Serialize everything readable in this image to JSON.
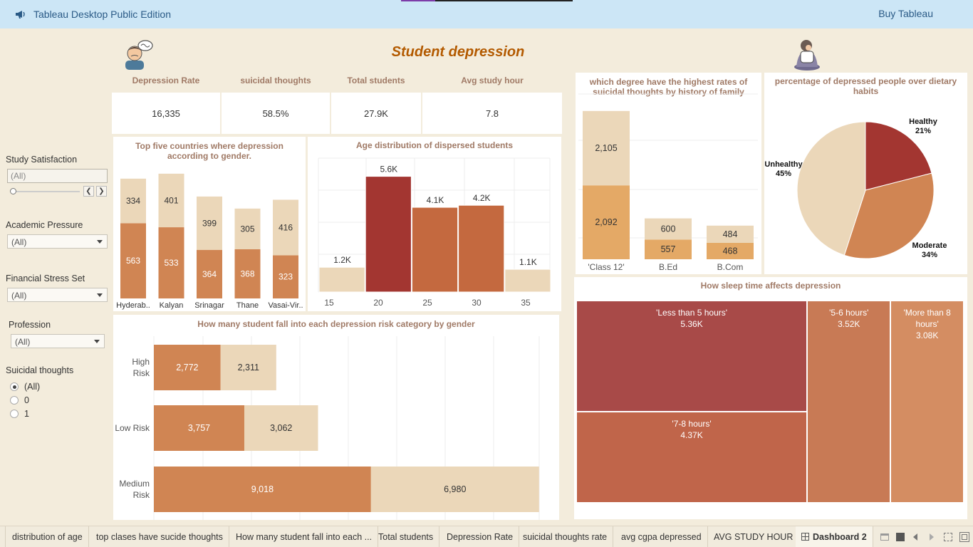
{
  "topbar": {
    "app_title": "Tableau Desktop Public Edition",
    "buy_label": "Buy Tableau",
    "icon": "megaphone-icon"
  },
  "dashboard": {
    "title": "Student depression"
  },
  "kpis": [
    {
      "label": "Depression Rate",
      "value": "16,335"
    },
    {
      "label": "suicidal thoughts",
      "value": "58.5%"
    },
    {
      "label": "Total students",
      "value": "27.9K"
    },
    {
      "label": "Avg study hour",
      "value": "7.8"
    }
  ],
  "filters": {
    "study_satisfaction": {
      "label": "Study Satisfaction",
      "value": "(All)"
    },
    "academic_pressure": {
      "label": "Academic Pressure",
      "value": "(All)"
    },
    "financial_stress": {
      "label": "Financial Stress Set",
      "value": "(All)"
    },
    "profession": {
      "label": "Profession",
      "value": "(All)"
    },
    "suicidal_thoughts": {
      "label": "Suicidal thoughts",
      "options": [
        "(All)",
        "0",
        "1"
      ],
      "selected": "(All)"
    }
  },
  "panels": {
    "countries_title": "Top five countries where depression according to gender.",
    "age_title": "Age distribution of dispersed students",
    "risk_title": "How many student fall into each depression risk category by gender",
    "degree_title": "which degree have the highest rates of suicidal thoughts by history of family",
    "diet_title": "percentage of depressed people over dietary habits",
    "sleep_title": "How  sleep time affects depression"
  },
  "colors": {
    "dark": "#a33631",
    "medium": "#c4693f",
    "orange": "#d08553",
    "light": "#ebd7b9",
    "gold": "#e4a966"
  },
  "chart_data": [
    {
      "id": "countries",
      "type": "bar",
      "categories": [
        "Hyderab..",
        "Kalyan",
        "Srinagar",
        "Thane",
        "Vasai-Vir.."
      ],
      "series": [
        {
          "values": [
            563,
            533,
            364,
            368,
            323
          ]
        },
        {
          "values": [
            334,
            401,
            399,
            305,
            416
          ]
        }
      ]
    },
    {
      "id": "age",
      "type": "bar",
      "x": [
        15,
        20,
        25,
        30,
        35
      ],
      "values": [
        1200,
        5600,
        4100,
        4200,
        1100
      ],
      "labels": [
        "1.2K",
        "5.6K",
        "4.1K",
        "4.2K",
        "1.1K"
      ]
    },
    {
      "id": "risk",
      "type": "bar",
      "categories": [
        "High Risk",
        "Low Risk",
        "Medium Risk"
      ],
      "series": [
        {
          "values": [
            2772,
            3757,
            9018
          ]
        },
        {
          "values": [
            2311,
            3062,
            6980
          ]
        }
      ]
    },
    {
      "id": "degree",
      "type": "bar",
      "categories": [
        "'Class 12'",
        "B.Ed",
        "B.Com"
      ],
      "series": [
        {
          "values": [
            2092,
            557,
            468
          ]
        },
        {
          "values": [
            2105,
            600,
            484
          ]
        }
      ]
    },
    {
      "id": "diet",
      "type": "pie",
      "slices": [
        {
          "label": "Healthy",
          "pct": 21,
          "value_label": "21%"
        },
        {
          "label": "Moderate",
          "pct": 34,
          "value_label": "34%"
        },
        {
          "label": "Unhealthy",
          "pct": 45,
          "value_label": "45%"
        }
      ]
    },
    {
      "id": "sleep",
      "type": "treemap",
      "items": [
        {
          "label": "'Less than 5 hours'",
          "value_label": "5.36K",
          "value": 5360
        },
        {
          "label": "'7-8 hours'",
          "value_label": "4.37K",
          "value": 4370
        },
        {
          "label": "'5-6 hours'",
          "value_label": "3.52K",
          "value": 3520
        },
        {
          "label": "'More than 8 hours'",
          "value_label": "3.08K",
          "value": 3080
        }
      ]
    }
  ],
  "tabs": [
    "distribution of age",
    "top clases have sucide thoughts",
    "How many student fall into each ...",
    "Total students",
    "Depression Rate",
    "suicidal thoughts rate",
    "avg cgpa depressed",
    "AVG STUDY HOUR",
    "Dashboard 2"
  ],
  "active_tab": "Dashboard 2"
}
